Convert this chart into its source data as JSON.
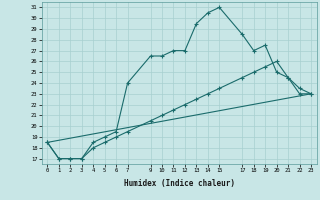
{
  "title": "",
  "xlabel": "Humidex (Indice chaleur)",
  "bg_color": "#c8e6e6",
  "grid_color": "#a8d0d0",
  "line_color": "#1a6b6b",
  "line1_x": [
    0,
    1,
    2,
    3,
    4,
    5,
    6,
    7,
    9,
    10,
    11,
    12,
    13,
    14,
    15,
    17,
    18,
    19,
    20,
    21,
    22,
    23
  ],
  "line1_y": [
    18.5,
    17.0,
    17.0,
    17.0,
    18.5,
    19.0,
    19.5,
    24.0,
    26.5,
    26.5,
    27.0,
    27.0,
    29.5,
    30.5,
    31.0,
    28.5,
    27.0,
    27.5,
    25.0,
    24.5,
    23.0,
    23.0
  ],
  "line2_x": [
    0,
    1,
    2,
    3,
    4,
    5,
    6,
    7,
    9,
    10,
    11,
    12,
    13,
    14,
    15,
    17,
    18,
    19,
    20,
    21,
    22,
    23
  ],
  "line2_y": [
    18.5,
    17.0,
    17.0,
    17.0,
    18.0,
    18.5,
    19.0,
    19.5,
    20.5,
    21.0,
    21.5,
    22.0,
    22.5,
    23.0,
    23.5,
    24.5,
    25.0,
    25.5,
    26.0,
    24.5,
    23.5,
    23.0
  ],
  "line3_x": [
    0,
    23
  ],
  "line3_y": [
    18.5,
    23.0
  ],
  "ylim": [
    16.5,
    31.5
  ],
  "xlim": [
    -0.5,
    23.5
  ],
  "xticks": [
    0,
    1,
    2,
    3,
    4,
    5,
    6,
    7,
    9,
    10,
    11,
    12,
    13,
    14,
    15,
    17,
    18,
    19,
    20,
    21,
    22,
    23
  ],
  "yticks": [
    17,
    18,
    19,
    20,
    21,
    22,
    23,
    24,
    25,
    26,
    27,
    28,
    29,
    30,
    31
  ]
}
